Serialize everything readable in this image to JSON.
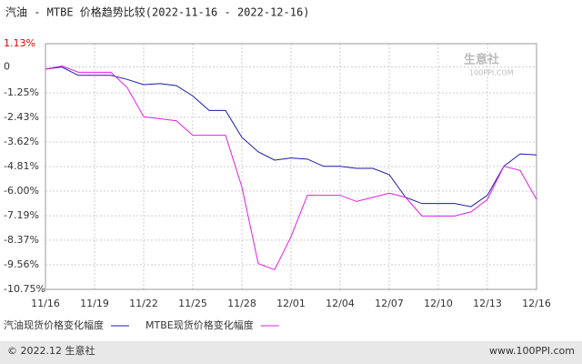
{
  "chart_data": {
    "type": "line",
    "title": "汽油 - MTBE 价格趋势比较(2022-11-16 - 2022-12-16)",
    "categories": [
      "11/16",
      null,
      null,
      "11/19",
      null,
      null,
      "11/22",
      null,
      null,
      "11/25",
      null,
      null,
      "11/28",
      null,
      null,
      "12/01",
      null,
      null,
      "12/04",
      null,
      null,
      "12/07",
      null,
      null,
      "12/10",
      null,
      null,
      "12/13",
      null,
      null,
      "12/16"
    ],
    "series": [
      {
        "name": "汽油现货价格变化幅度",
        "color": "#1a1aa6",
        "values": [
          -0.1,
          0,
          -0.4,
          -0.4,
          -0.4,
          -0.6,
          -0.85,
          -0.8,
          -0.9,
          -1.4,
          -2.1,
          -2.1,
          -3.4,
          -4.1,
          -4.5,
          -4.4,
          -4.45,
          -4.8,
          -4.8,
          -4.9,
          -4.9,
          -5.2,
          -6.3,
          -6.6,
          -6.6,
          -6.6,
          -6.75,
          -6.2,
          -4.8,
          -4.2,
          -4.25
        ]
      },
      {
        "name": "MTBE现货价格变化幅度",
        "color": "#e020e0",
        "values": [
          -0.1,
          0.05,
          -0.25,
          -0.25,
          -0.25,
          -1.0,
          -2.4,
          -2.5,
          -2.6,
          -3.3,
          -3.3,
          -3.3,
          -5.8,
          -9.5,
          -9.8,
          -8.2,
          -6.2,
          -6.2,
          -6.2,
          -6.5,
          -6.3,
          -6.1,
          -6.3,
          -7.2,
          -7.2,
          -7.2,
          -7.0,
          -6.4,
          -4.8,
          -5.0,
          -6.4
        ]
      }
    ],
    "ylim": [
      -10.75,
      1.13
    ],
    "yticks": [
      {
        "value": 1.13,
        "label": "1.13%"
      },
      0,
      {
        "value": -1.25,
        "label": "-1.25%"
      },
      {
        "value": -2.43,
        "label": "-2.43%"
      },
      {
        "value": -3.62,
        "label": "-3.62%"
      },
      {
        "value": -4.81,
        "label": "-4.81%"
      },
      {
        "value": -6.0,
        "label": "-6.00%"
      },
      {
        "value": -7.19,
        "label": "-7.19%"
      },
      {
        "value": -8.37,
        "label": "-8.37%"
      },
      {
        "value": -9.56,
        "label": "-9.56%"
      },
      {
        "value": -10.75,
        "label": "-10.75%"
      }
    ],
    "grid": true,
    "watermark": "生意社",
    "watermark_sub": "100PPI.COM",
    "footer_left": "© 2022.12 生意社",
    "footer_right": "www.100PPI.com"
  }
}
